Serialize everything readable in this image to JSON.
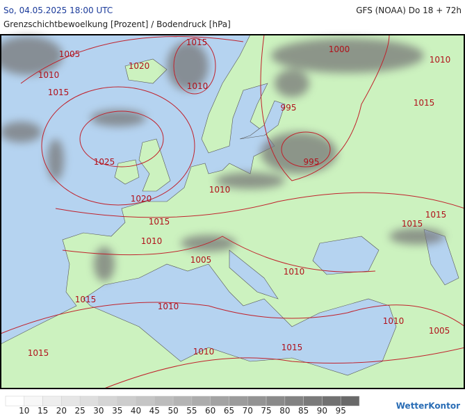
{
  "header": {
    "datetime": "So, 04.05.2025 18:00 UTC",
    "model": "GFS (NOAA) Do 18 + 72h",
    "subtitle": "Grenzschichtbewoelkung [Prozent] / Bodendruck [hPa]"
  },
  "isobar_labels": [
    1005,
    1010,
    1015,
    1020,
    1015,
    1010,
    1000,
    1010,
    995,
    1015,
    1025,
    995,
    1010,
    1020,
    1015,
    1015,
    1015,
    1010,
    1005,
    1010,
    1015,
    1010,
    1010,
    1005,
    1015,
    1010,
    1015
  ],
  "legend": {
    "ticks": [
      10,
      15,
      20,
      25,
      30,
      35,
      40,
      45,
      50,
      55,
      60,
      65,
      70,
      75,
      80,
      85,
      90,
      95
    ]
  },
  "logo": "WetterKontor"
}
